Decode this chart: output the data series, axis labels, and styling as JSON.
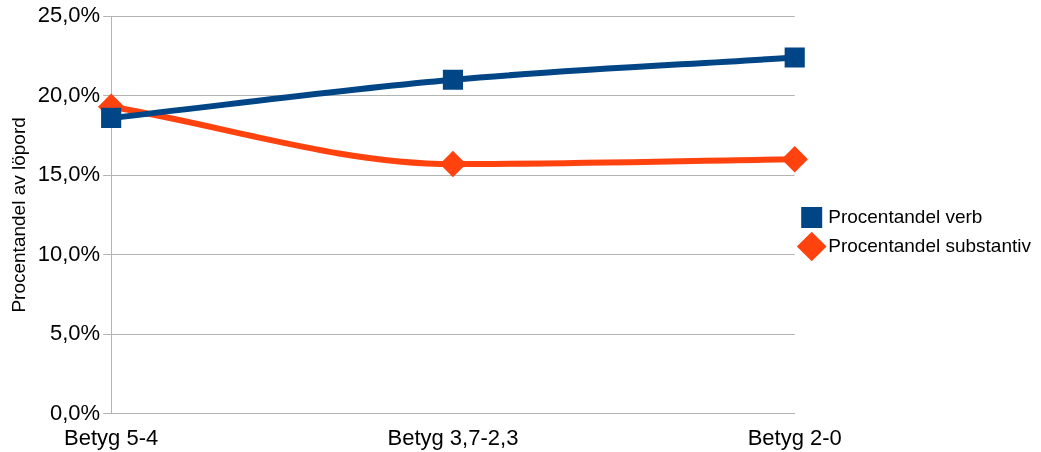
{
  "chart_data": {
    "type": "line",
    "ylabel": "Procentandel av löpord",
    "categories": [
      "Betyg 5-4",
      "Betyg 3,7-2,3",
      "Betyg 2-0"
    ],
    "series": [
      {
        "name": "Procentandel verb",
        "color": "#004586",
        "marker": "square",
        "values": [
          18.6,
          21.0,
          22.4
        ]
      },
      {
        "name": "Procentandel substantiv",
        "color": "#ff420e",
        "marker": "diamond",
        "values": [
          19.3,
          15.7,
          16.0
        ]
      }
    ],
    "ylim": [
      0,
      25
    ],
    "yticks": [
      {
        "value": 0,
        "label": "0,0%"
      },
      {
        "value": 5,
        "label": "5,0%"
      },
      {
        "value": 10,
        "label": "10,0%"
      },
      {
        "value": 15,
        "label": "15,0%"
      },
      {
        "value": 20,
        "label": "20,0%"
      },
      {
        "value": 25,
        "label": "25,0%"
      }
    ],
    "grid": "y",
    "legend": "right"
  }
}
